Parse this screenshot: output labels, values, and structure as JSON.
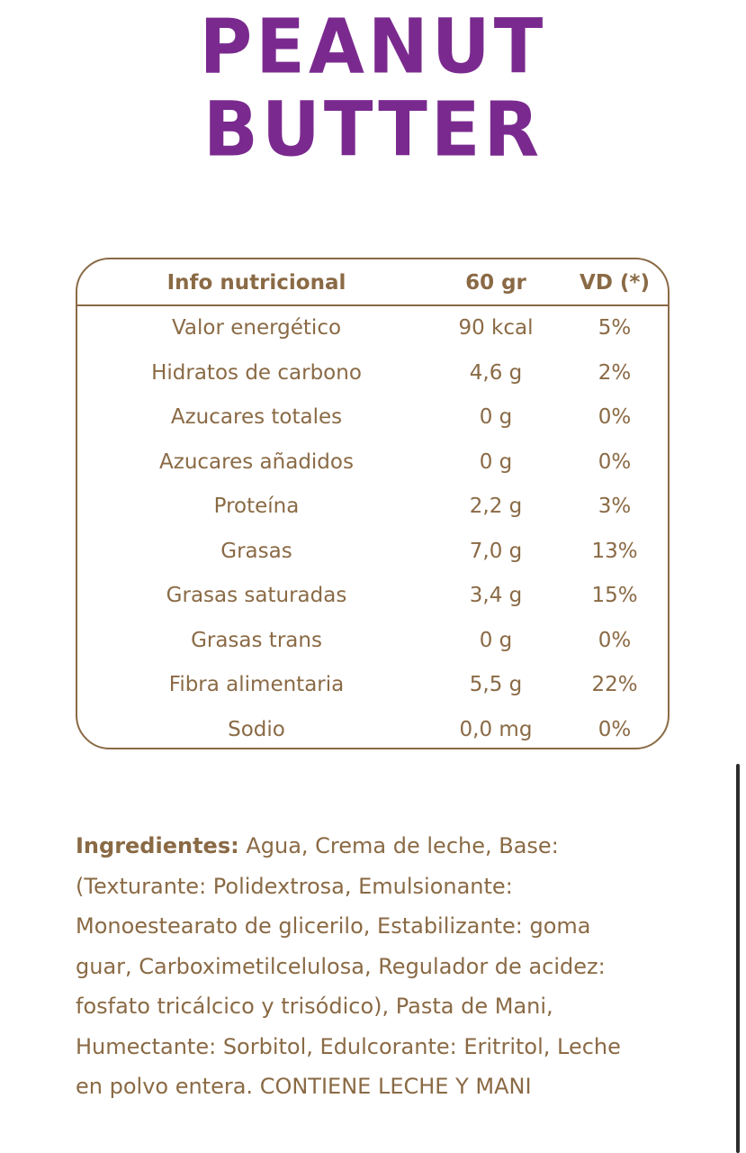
{
  "title": {
    "line1": "PEANUT",
    "line2": "BUTTER"
  },
  "colors": {
    "title": "#7a2a8e",
    "text": "#8a6a45",
    "border": "#8a6a45"
  },
  "table": {
    "headers": [
      "Info nutricional",
      "60 gr",
      "VD (*)"
    ],
    "rows": [
      [
        "Valor energético",
        "90 kcal",
        "5%"
      ],
      [
        "Hidratos de carbono",
        "4,6 g",
        "2%"
      ],
      [
        "Azucares totales",
        "0 g",
        "0%"
      ],
      [
        "Azucares añadidos",
        "0 g",
        "0%"
      ],
      [
        "Proteína",
        "2,2 g",
        "3%"
      ],
      [
        "Grasas",
        "7,0 g",
        "13%"
      ],
      [
        "Grasas saturadas",
        "3,4 g",
        "15%"
      ],
      [
        "Grasas trans",
        "0 g",
        "0%"
      ],
      [
        "Fibra alimentaria",
        "5,5 g",
        "22%"
      ],
      [
        "Sodio",
        "0,0 mg",
        "0%"
      ]
    ]
  },
  "ingredients": {
    "label": "Ingredientes:",
    "lines": [
      " Agua, Crema de leche, Base:",
      "(Texturante: Polidextrosa, Emulsionante:",
      "Monoestearato de glicerilo, Estabilizante: goma",
      "guar, Carboximetilcelulosa, Regulador de acidez:",
      "fosfato tricálcico y trisódico), Pasta de Mani,",
      "Humectante: Sorbitol, Edulcorante: Eritritol, Leche",
      "en polvo entera. CONTIENE LECHE Y MANI"
    ]
  }
}
